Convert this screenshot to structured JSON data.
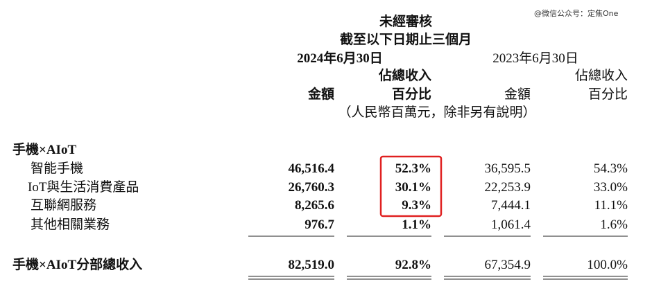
{
  "watermark": "@微信公众号：定焦One",
  "header": {
    "audit": "未經審核",
    "period": "截至以下日期止三個月",
    "date_2024": "2024年6月30日",
    "date_2023": "2023年6月30日",
    "columns": [
      {
        "line1": "金額"
      },
      {
        "line1": "佔總收入",
        "line2": "百分比"
      },
      {
        "line1": "金額"
      },
      {
        "line1": "佔總收入",
        "line2": "百分比"
      }
    ],
    "unit": "（人民幣百萬元，除非另有說明）"
  },
  "table": {
    "section": "手機×AIoT",
    "rows": [
      [
        "智能手機",
        "46,516.4",
        "52.3%",
        "36,595.5",
        "54.3%"
      ],
      [
        "IoT與生活消費產品",
        "26,760.3",
        "30.1%",
        "22,253.9",
        "33.0%"
      ],
      [
        "互聯網服務",
        "8,265.6",
        "9.3%",
        "7,444.1",
        "11.1%"
      ],
      [
        "其他相關業務",
        "976.7",
        "1.1%",
        "1,061.4",
        "1.6%"
      ]
    ],
    "total": [
      "手機×AIoT分部總收入",
      "82,519.0",
      "92.8%",
      "67,354.9",
      "100.0%"
    ]
  }
}
